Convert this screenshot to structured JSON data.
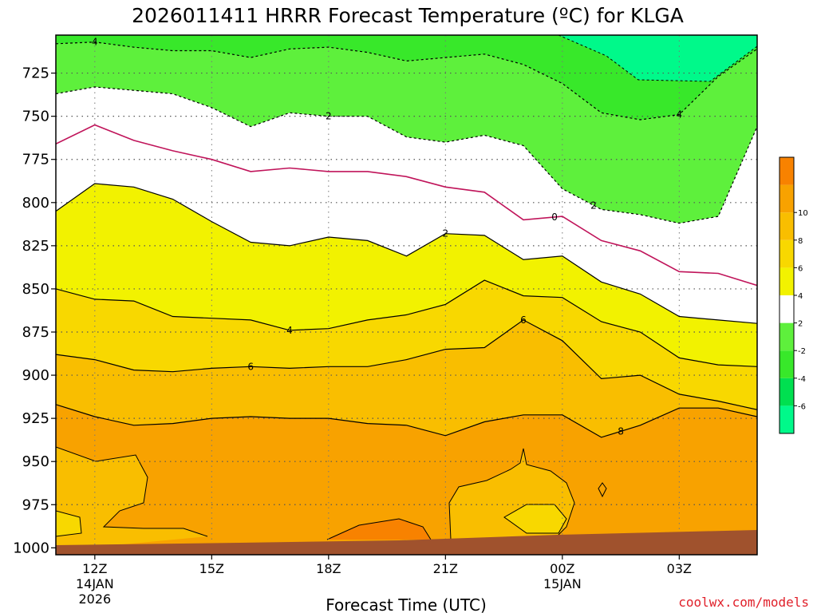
{
  "chart_data": {
    "type": "contour",
    "title": "2026011411 HRRR Forecast Temperature (ºC) for KLGA",
    "xlabel": "Forecast Time (UTC)",
    "ylabel": "",
    "x_ticks": [
      {
        "label": "12Z",
        "sub": [
          "14JAN",
          "2026"
        ],
        "hour": 12
      },
      {
        "label": "15Z",
        "sub": [],
        "hour": 15
      },
      {
        "label": "18Z",
        "sub": [],
        "hour": 18
      },
      {
        "label": "21Z",
        "sub": [],
        "hour": 21
      },
      {
        "label": "00Z",
        "sub": [
          "15JAN"
        ],
        "hour": 24
      },
      {
        "label": "03Z",
        "sub": [],
        "hour": 27
      }
    ],
    "xlim_hours": [
      11,
      29
    ],
    "y_ticks": [
      725,
      750,
      775,
      800,
      825,
      850,
      875,
      900,
      925,
      950,
      975,
      1000
    ],
    "ylim_hpa": [
      703,
      1004
    ],
    "units": "ºC",
    "fill_levels": [
      -8,
      -6,
      -4,
      -2,
      2,
      4,
      6,
      8,
      10,
      12
    ],
    "fill_colors": [
      "#00f98a",
      "#00e050",
      "#38e82a",
      "#5ef03c",
      "#ffffff",
      "#f2f200",
      "#f8d800",
      "#f9be00",
      "#f8a200",
      "#f88200"
    ],
    "colorbar_ticks": [
      "-6",
      "-4",
      "-2",
      "2",
      "4",
      "6",
      "8",
      "10"
    ],
    "contours": [
      {
        "level": -4,
        "style": "dashed",
        "label": "-4",
        "points": [
          [
            11,
            708
          ],
          [
            12,
            707
          ],
          [
            13,
            710
          ],
          [
            14,
            712
          ],
          [
            15,
            712
          ],
          [
            16,
            716
          ],
          [
            17,
            711
          ],
          [
            18,
            710
          ],
          [
            19,
            713
          ],
          [
            20,
            718
          ],
          [
            21,
            716
          ],
          [
            22,
            714
          ],
          [
            23,
            720
          ],
          [
            24,
            731
          ],
          [
            25,
            748
          ],
          [
            26,
            752
          ],
          [
            27,
            749
          ],
          [
            28,
            727
          ],
          [
            29,
            711
          ]
        ]
      },
      {
        "level": -2,
        "style": "dashed",
        "label": "-2",
        "points": [
          [
            11,
            737
          ],
          [
            12,
            733
          ],
          [
            13,
            735
          ],
          [
            14,
            737
          ],
          [
            15,
            745
          ],
          [
            16,
            756
          ],
          [
            17,
            748
          ],
          [
            18,
            750
          ],
          [
            19,
            750
          ],
          [
            20,
            762
          ],
          [
            21,
            765
          ],
          [
            22,
            761
          ],
          [
            23,
            767
          ],
          [
            24,
            792
          ],
          [
            25,
            804
          ],
          [
            26,
            807
          ],
          [
            27,
            812
          ],
          [
            28,
            808
          ],
          [
            29,
            756
          ]
        ]
      },
      {
        "level": 0,
        "style": "solid",
        "color": "#c0145a",
        "label": "0",
        "points": [
          [
            11,
            766
          ],
          [
            12,
            755
          ],
          [
            13,
            764
          ],
          [
            14,
            770
          ],
          [
            15,
            775
          ],
          [
            16,
            782
          ],
          [
            17,
            780
          ],
          [
            18,
            782
          ],
          [
            19,
            782
          ],
          [
            20,
            785
          ],
          [
            21,
            791
          ],
          [
            22,
            794
          ],
          [
            23,
            810
          ],
          [
            24,
            808
          ],
          [
            25,
            822
          ],
          [
            26,
            828
          ],
          [
            27,
            840
          ],
          [
            28,
            841
          ],
          [
            29,
            848
          ]
        ]
      },
      {
        "level": 2,
        "style": "solid",
        "label": "2",
        "points": [
          [
            11,
            805
          ],
          [
            12,
            789
          ],
          [
            13,
            791
          ],
          [
            14,
            798
          ],
          [
            15,
            811
          ],
          [
            16,
            823
          ],
          [
            17,
            825
          ],
          [
            18,
            820
          ],
          [
            19,
            822
          ],
          [
            20,
            831
          ],
          [
            21,
            818
          ],
          [
            22,
            819
          ],
          [
            23,
            833
          ],
          [
            24,
            831
          ],
          [
            25,
            846
          ],
          [
            26,
            853
          ],
          [
            27,
            866
          ],
          [
            28,
            868
          ],
          [
            29,
            870
          ]
        ]
      },
      {
        "level": 4,
        "style": "solid",
        "label": "4",
        "points": [
          [
            11,
            850
          ],
          [
            12,
            856
          ],
          [
            13,
            857
          ],
          [
            14,
            866
          ],
          [
            15,
            867
          ],
          [
            16,
            868
          ],
          [
            17,
            874
          ],
          [
            18,
            873
          ],
          [
            19,
            868
          ],
          [
            20,
            865
          ],
          [
            21,
            859
          ],
          [
            22,
            845
          ],
          [
            23,
            854
          ],
          [
            24,
            855
          ],
          [
            25,
            869
          ],
          [
            26,
            875
          ],
          [
            27,
            890
          ],
          [
            28,
            894
          ],
          [
            29,
            895
          ]
        ]
      },
      {
        "level": 6,
        "style": "solid",
        "label": "6",
        "points": [
          [
            11,
            888
          ],
          [
            12,
            891
          ],
          [
            13,
            897
          ],
          [
            14,
            898
          ],
          [
            15,
            896
          ],
          [
            16,
            895
          ],
          [
            17,
            896
          ],
          [
            18,
            895
          ],
          [
            19,
            895
          ],
          [
            20,
            891
          ],
          [
            21,
            885
          ],
          [
            22,
            884
          ],
          [
            23,
            868
          ],
          [
            24,
            880
          ],
          [
            25,
            902
          ],
          [
            26,
            900
          ],
          [
            27,
            911
          ],
          [
            28,
            915
          ],
          [
            29,
            920
          ]
        ]
      },
      {
        "level": 8,
        "style": "solid",
        "label": "8",
        "points": [
          [
            11,
            917
          ],
          [
            12,
            924
          ],
          [
            13,
            929
          ],
          [
            14,
            928
          ],
          [
            15,
            925
          ],
          [
            16,
            924
          ],
          [
            17,
            925
          ],
          [
            18,
            925
          ],
          [
            19,
            928
          ],
          [
            20,
            929
          ],
          [
            21,
            935
          ],
          [
            22,
            927
          ],
          [
            23,
            923
          ],
          [
            24,
            923
          ],
          [
            25,
            936
          ],
          [
            26,
            929
          ],
          [
            27,
            919
          ],
          [
            28,
            919
          ],
          [
            29,
            924
          ]
        ]
      }
    ],
    "credit": "coolwx.com/models"
  }
}
